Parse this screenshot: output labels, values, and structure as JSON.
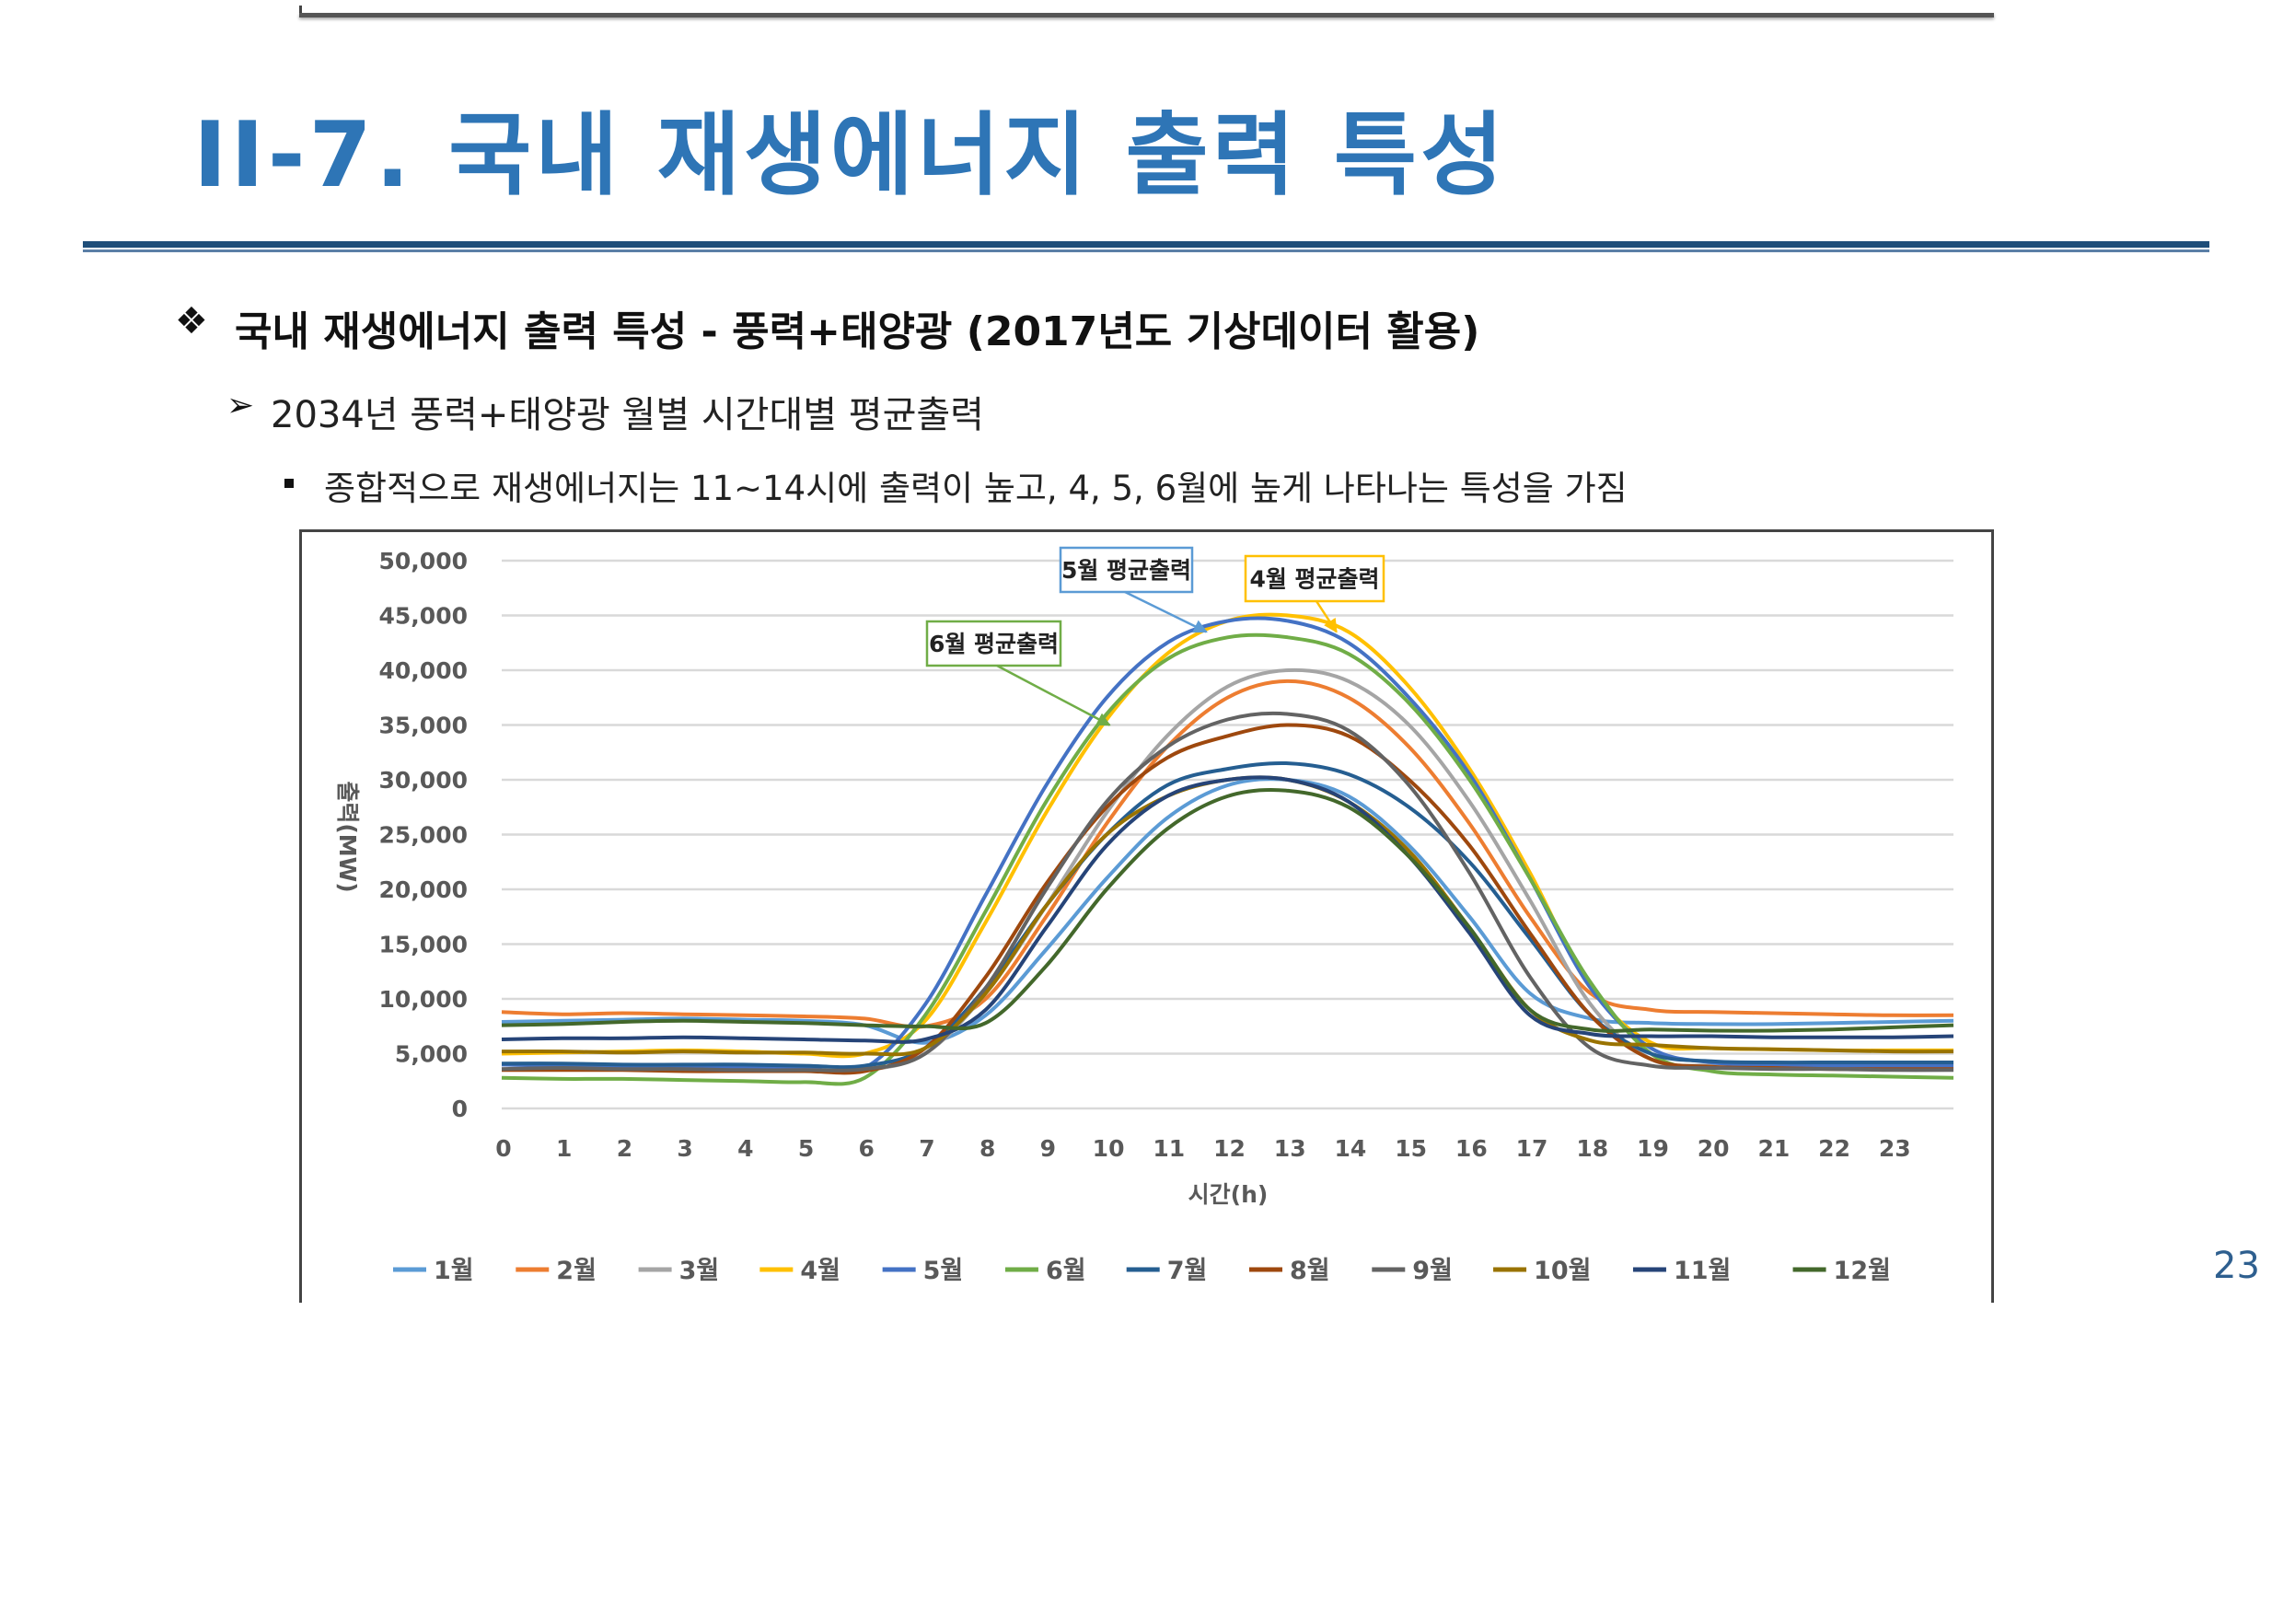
{
  "slide": {
    "title": "II-7.  국내 재생에너지 출력 특성",
    "heading": "국내 재생에너지 출력 특성 - 풍력+태양광 (2017년도 기상데이터 활용)",
    "subheading": "2034년 풍력+태양광 월별 시간대별 평균출력",
    "point": "종합적으로 재생에너지는 11~14시에 출력이 높고, 4, 5, 6월에 높게 나타나는 특성을 가짐",
    "page_number": "23",
    "bullet_icons": [
      "diamond-bullet-icon",
      "arrowhead-bullet-icon",
      "square-bullet-icon"
    ],
    "colors": {
      "title": "#2E75B6",
      "rule": "#1F4E79"
    }
  },
  "chart_data": {
    "type": "line",
    "title": "",
    "xlabel": "시간(h)",
    "ylabel": "출력(MW)",
    "xlim": [
      0,
      24
    ],
    "ylim": [
      0,
      50000
    ],
    "grid": true,
    "legend_position": "bottom",
    "x_ticks": [
      "0",
      "1",
      "2",
      "3",
      "4",
      "5",
      "6",
      "7",
      "8",
      "9",
      "10",
      "11",
      "12",
      "13",
      "14",
      "15",
      "16",
      "17",
      "18",
      "19",
      "20",
      "21",
      "22",
      "23"
    ],
    "y_ticks": [
      "0",
      "5,000",
      "10,000",
      "15,000",
      "20,000",
      "25,000",
      "30,000",
      "35,000",
      "40,000",
      "45,000",
      "50,000"
    ],
    "y_tick_values": [
      0,
      5000,
      10000,
      15000,
      20000,
      25000,
      30000,
      35000,
      40000,
      45000,
      50000
    ],
    "x": [
      0,
      1,
      2,
      3,
      4,
      5,
      6,
      7,
      8,
      9,
      10,
      11,
      12,
      13,
      14,
      15,
      16,
      17,
      18,
      19,
      20,
      21,
      22,
      23,
      24
    ],
    "series": [
      {
        "name": "1월",
        "color": "#5B9BD5",
        "values": [
          7900,
          8000,
          8100,
          8200,
          8100,
          8000,
          7600,
          6000,
          8500,
          14500,
          21000,
          26500,
          29500,
          30000,
          28500,
          24000,
          17500,
          10500,
          8200,
          7800,
          7700,
          7700,
          7800,
          7900,
          8000
        ]
      },
      {
        "name": "2월",
        "color": "#ED7D31",
        "values": [
          8800,
          8600,
          8700,
          8600,
          8500,
          8400,
          8200,
          7500,
          10000,
          17500,
          26000,
          33000,
          37500,
          39000,
          37500,
          33000,
          26000,
          17500,
          10500,
          9000,
          8800,
          8700,
          8600,
          8500,
          8500
        ]
      },
      {
        "name": "3월",
        "color": "#A5A5A5",
        "values": [
          3600,
          3600,
          3600,
          3700,
          3600,
          3500,
          3500,
          5000,
          10500,
          18500,
          27000,
          34000,
          38500,
          40000,
          39000,
          35000,
          28000,
          19000,
          9500,
          4500,
          3900,
          3800,
          3700,
          3800,
          3800
        ]
      },
      {
        "name": "4월",
        "color": "#FFC000",
        "values": [
          5000,
          5100,
          5200,
          5300,
          5200,
          5000,
          5000,
          8000,
          17000,
          27000,
          35500,
          41500,
          44500,
          45000,
          43500,
          38500,
          31000,
          21500,
          11000,
          6000,
          5500,
          5400,
          5300,
          5300,
          5300
        ]
      },
      {
        "name": "5월",
        "color": "#4472C4",
        "values": [
          4000,
          3900,
          3900,
          3800,
          3800,
          3700,
          3700,
          9500,
          19500,
          29500,
          37500,
          42500,
          44500,
          44500,
          42500,
          37500,
          30500,
          21000,
          11000,
          5500,
          4200,
          4000,
          3900,
          3900,
          3900
        ]
      },
      {
        "name": "6월",
        "color": "#70AD47",
        "values": [
          2800,
          2700,
          2700,
          2600,
          2500,
          2400,
          2800,
          8500,
          18000,
          28000,
          36000,
          41000,
          43000,
          43000,
          41500,
          37000,
          30000,
          21000,
          11500,
          5000,
          3400,
          3100,
          3000,
          2900,
          2800
        ]
      },
      {
        "name": "7월",
        "color": "#255E91",
        "values": [
          4100,
          4100,
          4000,
          4000,
          4000,
          3900,
          3900,
          5500,
          11000,
          18500,
          25000,
          29500,
          31000,
          31500,
          30500,
          27500,
          22500,
          15500,
          8500,
          5000,
          4300,
          4200,
          4200,
          4200,
          4200
        ]
      },
      {
        "name": "8월",
        "color": "#9E480E",
        "values": [
          3500,
          3500,
          3500,
          3400,
          3400,
          3400,
          3400,
          5500,
          12000,
          20500,
          27500,
          32000,
          34000,
          35000,
          34000,
          30000,
          24000,
          16000,
          8500,
          4500,
          3800,
          3700,
          3600,
          3600,
          3600
        ]
      },
      {
        "name": "9월",
        "color": "#636363",
        "values": [
          3600,
          3700,
          3600,
          3600,
          3500,
          3500,
          3600,
          5000,
          11000,
          20000,
          28000,
          33000,
          35500,
          36000,
          34500,
          29500,
          21500,
          12000,
          5500,
          3900,
          3700,
          3600,
          3600,
          3500,
          3500
        ]
      },
      {
        "name": "10월",
        "color": "#997300",
        "values": [
          5200,
          5200,
          5100,
          5200,
          5100,
          5100,
          5000,
          5500,
          10500,
          18500,
          25000,
          28500,
          30000,
          30000,
          28000,
          23500,
          16500,
          9000,
          6200,
          5800,
          5500,
          5400,
          5300,
          5200,
          5200
        ]
      },
      {
        "name": "11월",
        "color": "#264478",
        "values": [
          6300,
          6400,
          6400,
          6500,
          6400,
          6300,
          6200,
          6300,
          9000,
          16500,
          24000,
          28500,
          30000,
          30000,
          28000,
          23000,
          16000,
          8500,
          6800,
          6600,
          6600,
          6500,
          6500,
          6500,
          6600
        ]
      },
      {
        "name": "12월",
        "color": "#43682B",
        "values": [
          7600,
          7700,
          7900,
          8000,
          7900,
          7800,
          7600,
          7500,
          7800,
          13000,
          20000,
          25500,
          28500,
          29000,
          27500,
          23000,
          16500,
          9000,
          7200,
          7200,
          7100,
          7100,
          7200,
          7400,
          7600
        ]
      }
    ],
    "annotations": [
      {
        "label": "5월 평균출력",
        "series": "5월",
        "color": "#5B9BD5",
        "target": {
          "x": 11.65,
          "y": 43500
        }
      },
      {
        "label": "4월 평균출력",
        "series": "4월",
        "color": "#FFC000",
        "target": {
          "x": 13.8,
          "y": 43500
        }
      },
      {
        "label": "6월 평균출력",
        "series": "6월",
        "color": "#70AD47",
        "target": {
          "x": 10.05,
          "y": 35000
        }
      }
    ]
  }
}
